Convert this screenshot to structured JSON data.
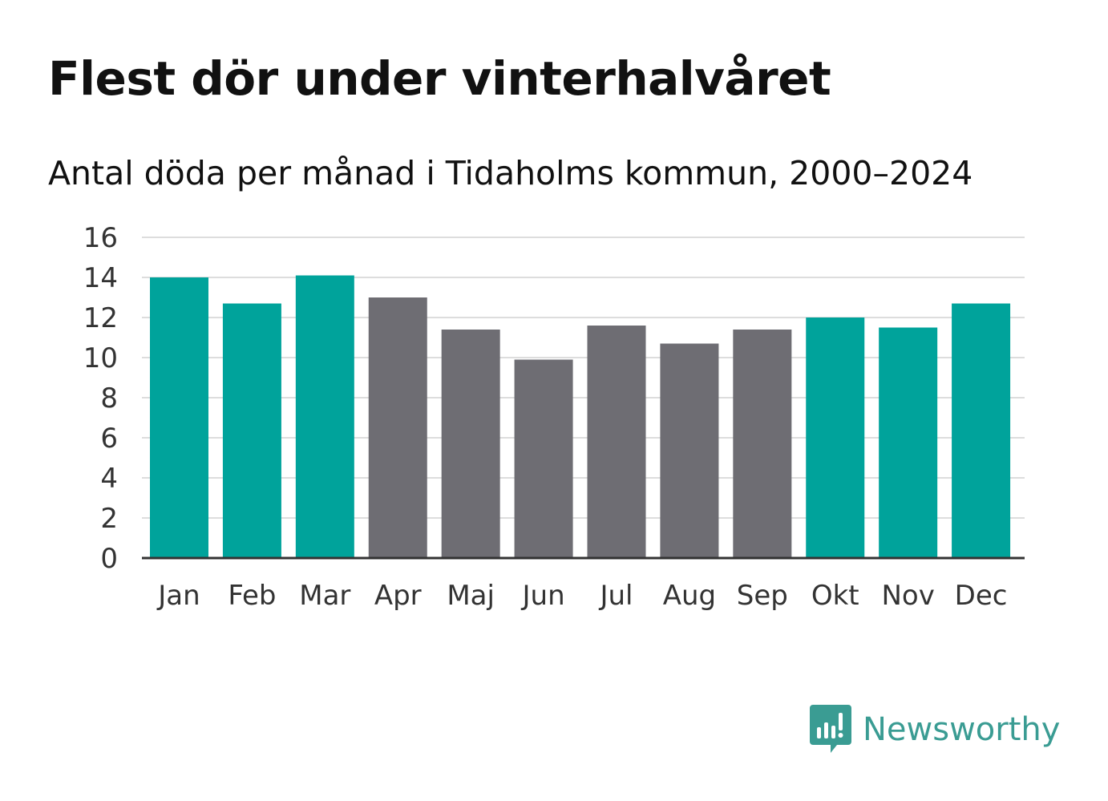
{
  "title": "Flest dör under vinterhalvåret",
  "subtitle": "Antal döda per månad i Tidaholms kommun, 2000–2024",
  "brand": {
    "name": "Newsworthy",
    "icon": "newsworthy-logo-icon",
    "color": "#3a9c93"
  },
  "colors": {
    "winter": "#00a39b",
    "summer": "#6e6d73",
    "grid": "#dddddd",
    "axis": "#333333"
  },
  "chart_data": {
    "type": "bar",
    "title": "Flest dör under vinterhalvåret",
    "subtitle": "Antal döda per månad i Tidaholms kommun, 2000–2024",
    "xlabel": "",
    "ylabel": "",
    "ylim": [
      0,
      16
    ],
    "yticks": [
      0,
      2,
      4,
      6,
      8,
      10,
      12,
      14,
      16
    ],
    "grid": true,
    "categories": [
      "Jan",
      "Feb",
      "Mar",
      "Apr",
      "Maj",
      "Jun",
      "Jul",
      "Aug",
      "Sep",
      "Okt",
      "Nov",
      "Dec"
    ],
    "values": [
      14.0,
      12.7,
      14.1,
      13.0,
      11.4,
      9.9,
      11.6,
      10.7,
      11.4,
      12.0,
      11.5,
      12.7
    ],
    "highlight": [
      "winter",
      "winter",
      "winter",
      "summer",
      "summer",
      "summer",
      "summer",
      "summer",
      "summer",
      "winter",
      "winter",
      "winter"
    ]
  }
}
